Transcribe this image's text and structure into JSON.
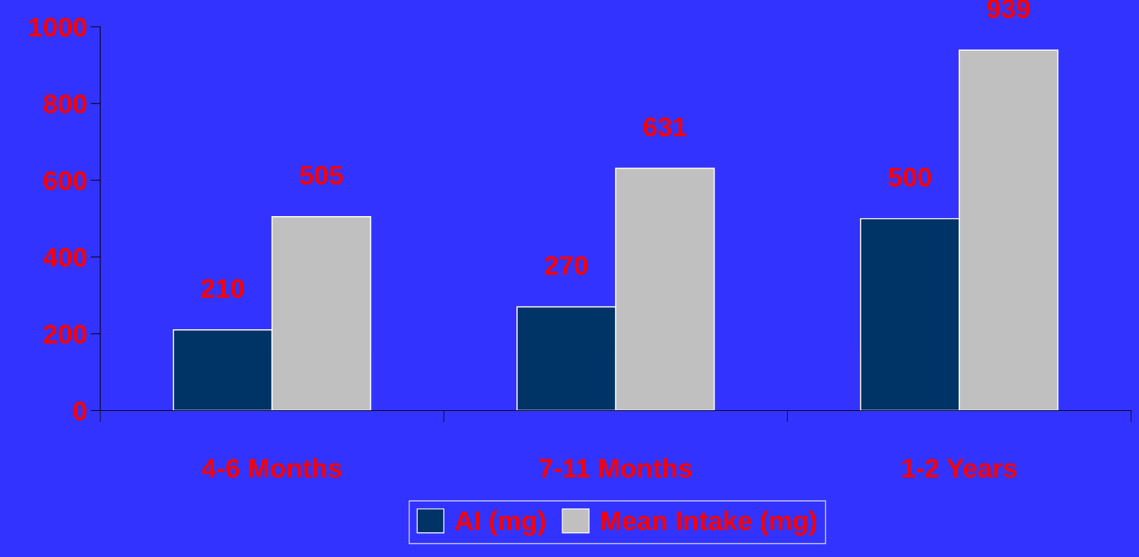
{
  "chart_data": {
    "type": "bar",
    "categories": [
      "4-6 Months",
      "7-11 Months",
      "1-2 Years"
    ],
    "series": [
      {
        "name": "AI (mg)",
        "color": "#003366",
        "values": [
          210,
          270,
          500
        ]
      },
      {
        "name": "Mean Intake (mg)",
        "color": "#c0c0c0",
        "values": [
          505,
          631,
          939
        ]
      }
    ],
    "ylim": [
      0,
      1000
    ],
    "yticks": [
      0,
      200,
      400,
      600,
      800,
      1000
    ],
    "data_labels": true,
    "grid": false,
    "legend": "bottom"
  }
}
